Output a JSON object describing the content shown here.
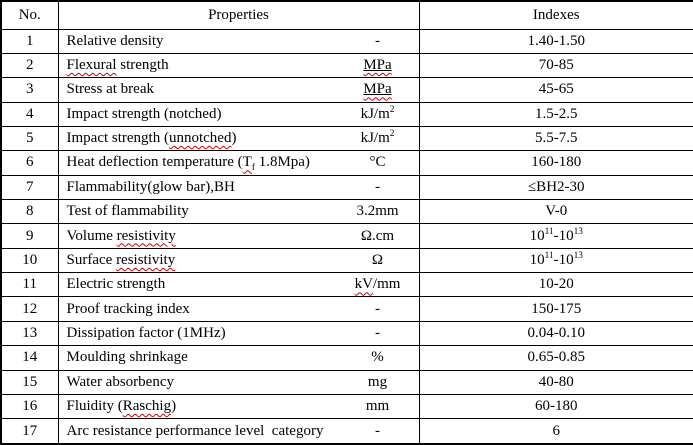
{
  "colors": {
    "background": "#ffffff",
    "text": "#000000",
    "border": "#000000",
    "spellcheck_squiggle": "#d40000"
  },
  "table": {
    "headers": {
      "no": "No.",
      "properties": "Properties",
      "indexes": "Indexes"
    },
    "rows": [
      {
        "no": "1",
        "property": [
          {
            "t": "Relative density"
          }
        ],
        "unit": [
          {
            "t": "-"
          }
        ],
        "index": [
          {
            "t": "1.40-1.50"
          }
        ]
      },
      {
        "no": "2",
        "property": [
          {
            "t": "Flexural",
            "sq": true
          },
          {
            "t": " strength"
          }
        ],
        "unit": [
          {
            "t": "MPa",
            "sq": true,
            "ul": true
          }
        ],
        "index": [
          {
            "t": "70-85"
          }
        ]
      },
      {
        "no": "3",
        "property": [
          {
            "t": "Stress at break"
          }
        ],
        "unit": [
          {
            "t": "MPa",
            "sq": true,
            "ul": true
          }
        ],
        "index": [
          {
            "t": "45-65"
          }
        ]
      },
      {
        "no": "4",
        "property": [
          {
            "t": "Impact strength (notched)"
          }
        ],
        "unit": [
          {
            "t": "kJ/m"
          },
          {
            "t": "2",
            "sup": true
          }
        ],
        "index": [
          {
            "t": "1.5-2.5"
          }
        ]
      },
      {
        "no": "5",
        "property": [
          {
            "t": "Impact strength ("
          },
          {
            "t": "unnotched",
            "sq": true
          },
          {
            "t": ")"
          }
        ],
        "unit": [
          {
            "t": "kJ/m"
          },
          {
            "t": "2",
            "sup": true
          }
        ],
        "index": [
          {
            "t": "5.5-7.5"
          }
        ]
      },
      {
        "no": "6",
        "property": [
          {
            "t": "Heat deflection temperature ("
          },
          {
            "t": "T",
            "sq": true
          },
          {
            "t": "f",
            "sub": true,
            "sq": true
          },
          {
            "t": " 1.8Mpa)"
          }
        ],
        "unit": [
          {
            "t": "°C"
          }
        ],
        "index": [
          {
            "t": "160-180"
          }
        ]
      },
      {
        "no": "7",
        "property": [
          {
            "t": "Flammability(glow bar),BH"
          }
        ],
        "unit": [
          {
            "t": "-"
          }
        ],
        "index": [
          {
            "t": "≤BH2-30"
          }
        ]
      },
      {
        "no": "8",
        "property": [
          {
            "t": "Test of flammability"
          }
        ],
        "unit": [
          {
            "t": "3.2mm"
          }
        ],
        "index": [
          {
            "t": "V-0"
          }
        ]
      },
      {
        "no": "9",
        "property": [
          {
            "t": "Volume "
          },
          {
            "t": "resistivity",
            "sq": true
          }
        ],
        "unit": [
          {
            "t": "Ω.cm"
          }
        ],
        "index": [
          {
            "t": "10"
          },
          {
            "t": "11",
            "sup": true
          },
          {
            "t": "-10"
          },
          {
            "t": "13",
            "sup": true
          }
        ]
      },
      {
        "no": "10",
        "property": [
          {
            "t": "Surface "
          },
          {
            "t": "resistivity",
            "sq": true
          }
        ],
        "unit": [
          {
            "t": "Ω"
          }
        ],
        "index": [
          {
            "t": "10"
          },
          {
            "t": "11",
            "sup": true
          },
          {
            "t": "-10"
          },
          {
            "t": "13",
            "sup": true
          }
        ]
      },
      {
        "no": "11",
        "property": [
          {
            "t": "Electric strength"
          }
        ],
        "unit": [
          {
            "t": "kV",
            "sq": true
          },
          {
            "t": "/mm"
          }
        ],
        "index": [
          {
            "t": "10-20"
          }
        ]
      },
      {
        "no": "12",
        "property": [
          {
            "t": "Proof tracking index"
          }
        ],
        "unit": [
          {
            "t": "-"
          }
        ],
        "index": [
          {
            "t": "150-175"
          }
        ]
      },
      {
        "no": "13",
        "property": [
          {
            "t": "Dissipation factor (1MHz)"
          }
        ],
        "unit": [
          {
            "t": "-"
          }
        ],
        "index": [
          {
            "t": "0.04-0.10"
          }
        ]
      },
      {
        "no": "14",
        "property": [
          {
            "t": "Moulding shrinkage"
          }
        ],
        "unit": [
          {
            "t": "%"
          }
        ],
        "index": [
          {
            "t": "0.65-0.85"
          }
        ]
      },
      {
        "no": "15",
        "property": [
          {
            "t": "Water absorbency"
          }
        ],
        "unit": [
          {
            "t": "mg"
          }
        ],
        "index": [
          {
            "t": "40-80"
          }
        ]
      },
      {
        "no": "16",
        "property": [
          {
            "t": "Fluidity ("
          },
          {
            "t": "Raschig",
            "sq": true
          },
          {
            "t": ")"
          }
        ],
        "unit": [
          {
            "t": "mm"
          }
        ],
        "index": [
          {
            "t": "60-180"
          }
        ]
      },
      {
        "no": "17",
        "property": [
          {
            "t": "Arc resistance performance level  category"
          }
        ],
        "unit": [
          {
            "t": "-"
          }
        ],
        "index": [
          {
            "t": "6"
          }
        ]
      }
    ]
  }
}
